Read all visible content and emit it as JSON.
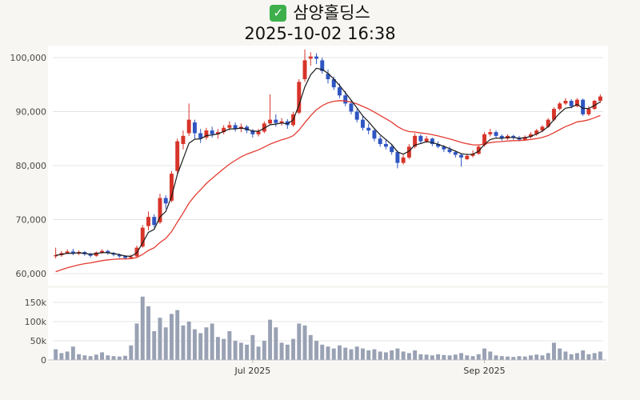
{
  "header": {
    "check_icon_glyph": "✓",
    "title": "삼양홀딩스",
    "timestamp": "2025-10-02 16:38"
  },
  "chart_data": {
    "type": "candlestick",
    "title": "삼양홀딩스",
    "subtitle": "2025-10-02 16:38",
    "legend_position": "none",
    "grid": true,
    "price_axis": {
      "min": 60000,
      "max": 100000,
      "ticks": [
        {
          "value": 100000,
          "label": "100,000"
        },
        {
          "value": 90000,
          "label": "90,000"
        },
        {
          "value": 80000,
          "label": "80,000"
        },
        {
          "value": 70000,
          "label": "70,000"
        },
        {
          "value": 60000,
          "label": "60,000"
        }
      ]
    },
    "volume_axis": {
      "max": 175000,
      "ticks": [
        {
          "value": 150000,
          "label": "150k"
        },
        {
          "value": 100000,
          "label": "100k"
        },
        {
          "value": 50000,
          "label": "50k"
        },
        {
          "value": 0,
          "label": "0"
        }
      ]
    },
    "x_ticks": [
      {
        "index": 34,
        "label": "Jul 2025"
      },
      {
        "index": 74,
        "label": "Sep 2025"
      }
    ],
    "colors": {
      "up": "#d7342a",
      "down": "#2f55c2",
      "ma_short": "#1a1a1a",
      "ma_long": "#e33b31",
      "volume": "#99a1b4",
      "grid": "#e4e4e4",
      "axis_line": "#bbbbbb",
      "axis_text": "#4a4a4a",
      "panel": "#ffffff",
      "title_check": "#3db04b"
    },
    "ma_short_period": 4,
    "ma_long_period": 18,
    "ma_long_seed": 60000,
    "candles_format": [
      "open",
      "high",
      "low",
      "close",
      "volume"
    ],
    "candles": [
      [
        63200,
        64800,
        62800,
        63400,
        28000
      ],
      [
        63400,
        64200,
        63100,
        63800,
        18000
      ],
      [
        63800,
        64500,
        63600,
        64100,
        22000
      ],
      [
        64100,
        64600,
        63400,
        63700,
        35000
      ],
      [
        63700,
        64300,
        63400,
        64000,
        15000
      ],
      [
        64000,
        64200,
        63300,
        63600,
        12000
      ],
      [
        63600,
        63900,
        63000,
        63300,
        10000
      ],
      [
        63300,
        64100,
        63100,
        63900,
        14000
      ],
      [
        63900,
        64500,
        63700,
        64200,
        20000
      ],
      [
        64200,
        64400,
        63500,
        63800,
        12000
      ],
      [
        63800,
        64000,
        63200,
        63500,
        10000
      ],
      [
        63500,
        63700,
        62900,
        63200,
        9000
      ],
      [
        63200,
        63400,
        62600,
        62900,
        11000
      ],
      [
        62900,
        63500,
        62700,
        63100,
        38000
      ],
      [
        63200,
        65200,
        63000,
        64800,
        95000
      ],
      [
        65000,
        69000,
        64800,
        68500,
        165000
      ],
      [
        68800,
        71500,
        68000,
        70500,
        140000
      ],
      [
        70500,
        71000,
        68500,
        69000,
        75000
      ],
      [
        69500,
        74800,
        69200,
        74000,
        110000
      ],
      [
        74000,
        74500,
        72000,
        73000,
        85000
      ],
      [
        73500,
        79000,
        73200,
        78500,
        120000
      ],
      [
        79000,
        85000,
        78500,
        84500,
        130000
      ],
      [
        84000,
        86500,
        83000,
        85500,
        90000
      ],
      [
        86000,
        91500,
        85500,
        88500,
        100000
      ],
      [
        88000,
        88500,
        85000,
        86000,
        80000
      ],
      [
        86000,
        86800,
        84200,
        85000,
        70000
      ],
      [
        85200,
        87000,
        84800,
        86500,
        85000
      ],
      [
        86500,
        87200,
        85200,
        85800,
        95000
      ],
      [
        85800,
        86800,
        85000,
        86200,
        60000
      ],
      [
        86200,
        87500,
        85800,
        87000,
        55000
      ],
      [
        87000,
        88200,
        86500,
        87500,
        75000
      ],
      [
        87500,
        88000,
        86300,
        86800,
        50000
      ],
      [
        86800,
        87800,
        86200,
        87200,
        45000
      ],
      [
        87200,
        87500,
        86000,
        86500,
        40000
      ],
      [
        86500,
        86800,
        85200,
        85800,
        65000
      ],
      [
        85800,
        86800,
        85400,
        86300,
        35000
      ],
      [
        86300,
        88200,
        86000,
        87800,
        50000
      ],
      [
        87800,
        93200,
        87500,
        88500,
        105000
      ],
      [
        88500,
        89500,
        87200,
        87900,
        85000
      ],
      [
        87900,
        88800,
        87400,
        88200,
        45000
      ],
      [
        88200,
        88600,
        86800,
        87500,
        40000
      ],
      [
        87500,
        90000,
        87200,
        89500,
        55000
      ],
      [
        89800,
        96000,
        89500,
        95500,
        95000
      ],
      [
        96000,
        101500,
        95500,
        99500,
        90000
      ],
      [
        99800,
        101000,
        98500,
        100200,
        65000
      ],
      [
        100200,
        100800,
        98800,
        99800,
        50000
      ],
      [
        99500,
        100000,
        97000,
        97500,
        40000
      ],
      [
        97000,
        97800,
        95200,
        96000,
        35000
      ],
      [
        96000,
        96500,
        94000,
        94500,
        30000
      ],
      [
        94500,
        95200,
        92500,
        93000,
        38000
      ],
      [
        93000,
        93800,
        91000,
        91500,
        32000
      ],
      [
        91500,
        92200,
        89500,
        90000,
        28000
      ],
      [
        90000,
        90500,
        88000,
        88500,
        35000
      ],
      [
        88500,
        89200,
        86500,
        87000,
        30000
      ],
      [
        87000,
        87800,
        85800,
        86500,
        25000
      ],
      [
        86500,
        87000,
        84500,
        85000,
        28000
      ],
      [
        85000,
        85500,
        83500,
        84000,
        22000
      ],
      [
        84000,
        84800,
        83000,
        83500,
        20000
      ],
      [
        83500,
        84000,
        82000,
        82500,
        25000
      ],
      [
        82500,
        82800,
        79500,
        80500,
        30000
      ],
      [
        80500,
        82000,
        80200,
        81500,
        22000
      ],
      [
        81500,
        84000,
        81200,
        83500,
        18000
      ],
      [
        83500,
        86000,
        83200,
        85500,
        25000
      ],
      [
        85500,
        85800,
        84000,
        84500,
        15000
      ],
      [
        84500,
        85500,
        84200,
        85000,
        14000
      ],
      [
        85000,
        85200,
        83600,
        84000,
        12000
      ],
      [
        84000,
        84500,
        83200,
        83500,
        15000
      ],
      [
        83500,
        83800,
        82500,
        83000,
        13000
      ],
      [
        83000,
        83500,
        82200,
        82500,
        12000
      ],
      [
        82500,
        82800,
        81500,
        82000,
        14000
      ],
      [
        82000,
        82200,
        79800,
        81500,
        18000
      ],
      [
        81200,
        82200,
        81000,
        81800,
        12000
      ],
      [
        81800,
        82800,
        81500,
        82200,
        10000
      ],
      [
        82200,
        83800,
        82000,
        83500,
        15000
      ],
      [
        83800,
        86200,
        83500,
        85800,
        30000
      ],
      [
        85800,
        86800,
        85400,
        86200,
        22000
      ],
      [
        86200,
        86500,
        85200,
        85500,
        12000
      ],
      [
        85500,
        85800,
        84600,
        85000,
        10000
      ],
      [
        85000,
        85800,
        84800,
        85500,
        9000
      ],
      [
        85500,
        85700,
        84800,
        85200,
        8000
      ],
      [
        85200,
        85500,
        84500,
        84800,
        10000
      ],
      [
        84800,
        85600,
        84600,
        85300,
        9000
      ],
      [
        85300,
        86200,
        85000,
        85800,
        12000
      ],
      [
        85800,
        86800,
        85500,
        86500,
        14000
      ],
      [
        86500,
        87500,
        86200,
        87200,
        12000
      ],
      [
        87200,
        88800,
        87000,
        88500,
        18000
      ],
      [
        88500,
        90800,
        88200,
        90500,
        45000
      ],
      [
        90500,
        91800,
        90200,
        91500,
        30000
      ],
      [
        91500,
        92500,
        91200,
        92000,
        22000
      ],
      [
        92000,
        92300,
        90600,
        91000,
        15000
      ],
      [
        91000,
        92500,
        90800,
        92200,
        18000
      ],
      [
        92200,
        92400,
        89200,
        89500,
        25000
      ],
      [
        89500,
        91000,
        89200,
        90500,
        15000
      ],
      [
        90500,
        92200,
        90300,
        92000,
        18000
      ],
      [
        92000,
        93200,
        91600,
        92800,
        22000
      ]
    ]
  }
}
